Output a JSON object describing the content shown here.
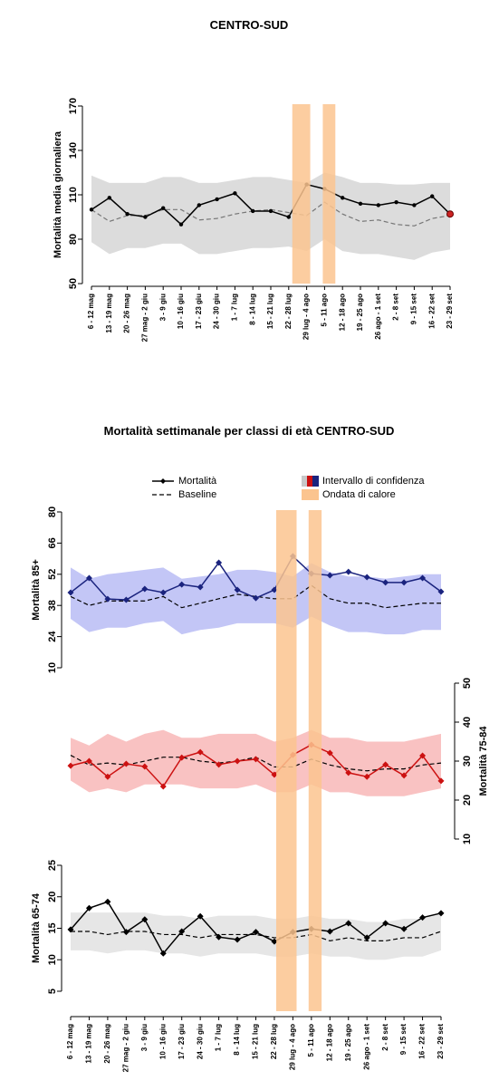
{
  "chart_data": [
    {
      "type": "line",
      "title": "CENTRO-SUD",
      "ylabel": "Mortalità media giornaliera",
      "categories": [
        "6 - 12 mag",
        "13 - 19 mag",
        "20 - 26 mag",
        "27 mag - 2 giu",
        "3 - 9 giu",
        "10 - 16 giu",
        "17 - 23 giu",
        "24 - 30 giu",
        "1 - 7 lug",
        "8 - 14 lug",
        "15 - 21 lug",
        "22 - 28 lug",
        "29 lug - 4 ago",
        "5 - 11 ago",
        "12 - 18 ago",
        "19 - 25 ago",
        "26 ago - 1 set",
        "2 - 8 set",
        "9 - 15 set",
        "16 - 22 set",
        "23 - 29 set"
      ],
      "values": [
        100,
        108,
        97,
        95,
        101,
        90,
        103,
        107,
        111,
        99,
        99,
        95,
        117,
        114,
        108,
        104,
        103,
        105,
        103,
        109,
        97
      ],
      "baseline": [
        100,
        92,
        96,
        96,
        100,
        100,
        93,
        94,
        97,
        99,
        100,
        98,
        96,
        105,
        97,
        92,
        93,
        90,
        89,
        94,
        96
      ],
      "ci_upper": [
        123,
        118,
        118,
        118,
        122,
        122,
        118,
        118,
        120,
        122,
        122,
        120,
        118,
        125,
        122,
        118,
        118,
        117,
        117,
        118,
        118
      ],
      "ci_lower": [
        78,
        70,
        74,
        74,
        77,
        77,
        70,
        70,
        72,
        74,
        74,
        75,
        72,
        80,
        72,
        70,
        70,
        68,
        66,
        71,
        73
      ],
      "ylim": [
        50,
        170
      ],
      "yticks": [
        50,
        80,
        110,
        140,
        170
      ],
      "color": "#000000",
      "baseline_color": "#777777",
      "band_color": "#dcdcdc",
      "marker": "circle",
      "end_marker_color": "#cc2222",
      "heat_waves": [
        [
          11.2,
          12.2
        ],
        [
          12.9,
          13.6
        ]
      ],
      "heat_color": "#fbc48f"
    },
    {
      "type": "line",
      "title": "Mortalità settimanale per classi di età CENTRO-SUD",
      "legend": [
        "Mortalità",
        "Baseline",
        "Intervallo di confidenza",
        "Ondata di calore"
      ],
      "categories": [
        "6 - 12 mag",
        "13 - 19 mag",
        "20 - 26 mag",
        "27 mag - 2 giu",
        "3 - 9 giu",
        "10 - 16 giu",
        "17 - 23 giu",
        "24 - 30 giu",
        "1 - 7 lug",
        "8 - 14 lug",
        "15 - 21 lug",
        "22 - 28 lug",
        "29 lug - 4 ago",
        "5 - 11 ago",
        "12 - 18 ago",
        "19 - 25 ago",
        "26 ago - 1 set",
        "2 - 8 set",
        "9 - 15 set",
        "16 - 22 set",
        "23 - 29 set"
      ],
      "heat_waves": [
        [
          11.1,
          12.2
        ],
        [
          12.85,
          13.55
        ]
      ],
      "heat_color": "#fbc48f",
      "panels": [
        {
          "ylabel": "Mortalità 85+",
          "ylim": [
            10,
            80
          ],
          "yticks": [
            10,
            24,
            38,
            52,
            66,
            80
          ],
          "axis_side": "left",
          "values": [
            43.8,
            50.3,
            40.9,
            40.5,
            45.4,
            43.8,
            47.4,
            46.2,
            57.2,
            45.0,
            41.3,
            45.0,
            60.1,
            52.3,
            51.5,
            53.1,
            50.7,
            48.3,
            48.3,
            50.3,
            44.2
          ],
          "baseline": [
            42,
            38,
            40,
            40,
            40,
            42,
            37,
            39,
            41,
            43,
            42,
            41,
            41,
            47,
            41,
            39,
            39,
            37,
            38,
            39,
            39
          ],
          "ci_upper": [
            55,
            50,
            52,
            53,
            54,
            55,
            50,
            51,
            52,
            54,
            54,
            53,
            51,
            57,
            53,
            51,
            51,
            50,
            51,
            52,
            52
          ],
          "ci_lower": [
            32,
            26,
            28,
            28,
            30,
            31,
            25,
            27,
            28,
            30,
            30,
            30,
            28,
            33,
            29,
            26,
            26,
            25,
            25,
            27,
            27
          ],
          "color": "#1a237e",
          "band_color": "#c3c6f6",
          "marker": "diamond"
        },
        {
          "ylabel": "Mortalità 75-84",
          "ylim": [
            10,
            50
          ],
          "yticks": [
            10,
            20,
            30,
            40,
            50
          ],
          "axis_side": "right",
          "values": [
            28.8,
            30.0,
            26.0,
            29.3,
            28.6,
            23.5,
            30.9,
            32.3,
            29.1,
            30.0,
            30.5,
            26.5,
            31.6,
            34.2,
            32.1,
            27.0,
            26.0,
            29.1,
            26.3,
            31.4,
            24.9
          ],
          "baseline": [
            31.5,
            29,
            29.5,
            29,
            30,
            31,
            31,
            30,
            29.5,
            30,
            31,
            28.5,
            28.5,
            30.5,
            29,
            28,
            27.5,
            28,
            28,
            29,
            29.5
          ],
          "ci_upper": [
            36,
            34,
            37,
            35,
            37,
            38,
            36,
            36,
            37,
            37,
            37,
            35,
            36,
            38,
            36,
            36,
            35,
            35,
            35,
            36,
            37
          ],
          "ci_lower": [
            25,
            22,
            23,
            22,
            24,
            24,
            24,
            23,
            23,
            23,
            24,
            22,
            22,
            24,
            22,
            22,
            21,
            21,
            21,
            22,
            23
          ],
          "color": "#cc1111",
          "band_color": "#f9c2c2",
          "marker": "diamond"
        },
        {
          "ylabel": "Mortalità 65-74",
          "ylim": [
            5,
            25
          ],
          "yticks": [
            5,
            10,
            15,
            20,
            25
          ],
          "axis_side": "left",
          "values": [
            14.8,
            18.2,
            19.2,
            14.4,
            16.4,
            11.0,
            14.5,
            16.9,
            13.6,
            13.2,
            14.4,
            12.9,
            14.4,
            14.9,
            14.5,
            15.8,
            13.5,
            15.8,
            14.9,
            16.7,
            17.4
          ],
          "baseline": [
            14.5,
            14.5,
            14,
            14.5,
            14.5,
            14,
            14,
            13.5,
            14,
            14,
            14,
            13.5,
            13.5,
            14,
            13,
            13.5,
            13,
            13,
            13.5,
            13.5,
            14.5
          ],
          "ci_upper": [
            17.5,
            17.5,
            17.5,
            17.5,
            17.5,
            17,
            17,
            16.5,
            17,
            17,
            17,
            16.5,
            16.5,
            17,
            16.5,
            16.5,
            16,
            16,
            16.5,
            16.5,
            17.5
          ],
          "ci_lower": [
            11.5,
            11.5,
            11,
            11.5,
            11.5,
            11,
            11,
            10.5,
            11,
            11,
            11,
            10.5,
            10.5,
            11,
            10.5,
            10.5,
            10,
            10,
            10.5,
            10.5,
            11.5
          ],
          "color": "#000000",
          "band_color": "#e6e6e6",
          "marker": "diamond"
        }
      ]
    }
  ]
}
